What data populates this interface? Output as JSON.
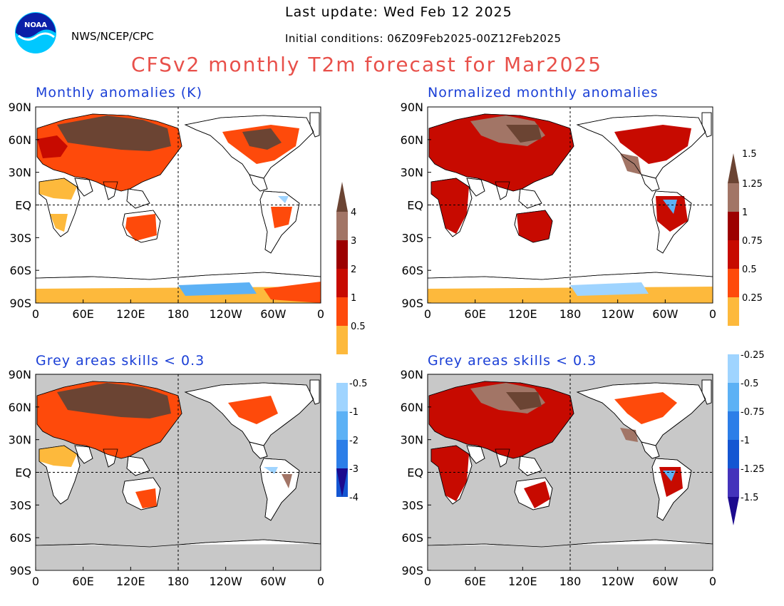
{
  "header": {
    "org": "NWS/NCEP/CPC",
    "last_update": "Last update: Wed Feb 12 2025",
    "initial_conditions": "Initial conditions: 06Z09Feb2025-00Z12Feb2025",
    "title": "CFSv2 monthly T2m forecast for Mar2025",
    "logo_text": "NOAA"
  },
  "panels": [
    {
      "id": "tl",
      "title": "Monthly anomalies (K)",
      "masked": false
    },
    {
      "id": "tr",
      "title": "Normalized monthly anomalies",
      "masked": false
    },
    {
      "id": "bl",
      "title": "Grey areas skills < 0.3",
      "masked": true
    },
    {
      "id": "br",
      "title": "Grey areas skills < 0.3",
      "masked": true
    }
  ],
  "axes": {
    "y_ticks": [
      "90N",
      "60N",
      "30N",
      "EQ",
      "30S",
      "60S",
      "90S"
    ],
    "x_ticks": [
      "0",
      "60E",
      "120E",
      "180",
      "120W",
      "60W",
      "0"
    ]
  },
  "colorbars": [
    {
      "id": "kelvin",
      "labels_top": [
        "4",
        "3",
        "2",
        "1",
        "0.5"
      ],
      "labels_bottom": [
        "-0.5",
        "-1",
        "-2",
        "-3",
        "-4"
      ]
    },
    {
      "id": "normalized",
      "labels_top": [
        "1.5",
        "1.25",
        "1",
        "0.75",
        "0.5",
        "0.25"
      ],
      "labels_bottom": [
        "-0.25",
        "-0.5",
        "-0.75",
        "-1",
        "-1.25",
        "-1.5"
      ]
    }
  ],
  "colors": {
    "warm": [
      "#fdb93c",
      "#fe4a0b",
      "#c70a00",
      "#9c0000",
      "#a27566",
      "#6b4433"
    ],
    "cold": [
      "#9fd4ff",
      "#5cb1f5",
      "#2c7ee8",
      "#1456d2",
      "#4433bb",
      "#1c0a8e"
    ],
    "mask_grey": "#c8c8c8",
    "title_red": "#e8504a",
    "title_blue": "#1a3fd6"
  }
}
